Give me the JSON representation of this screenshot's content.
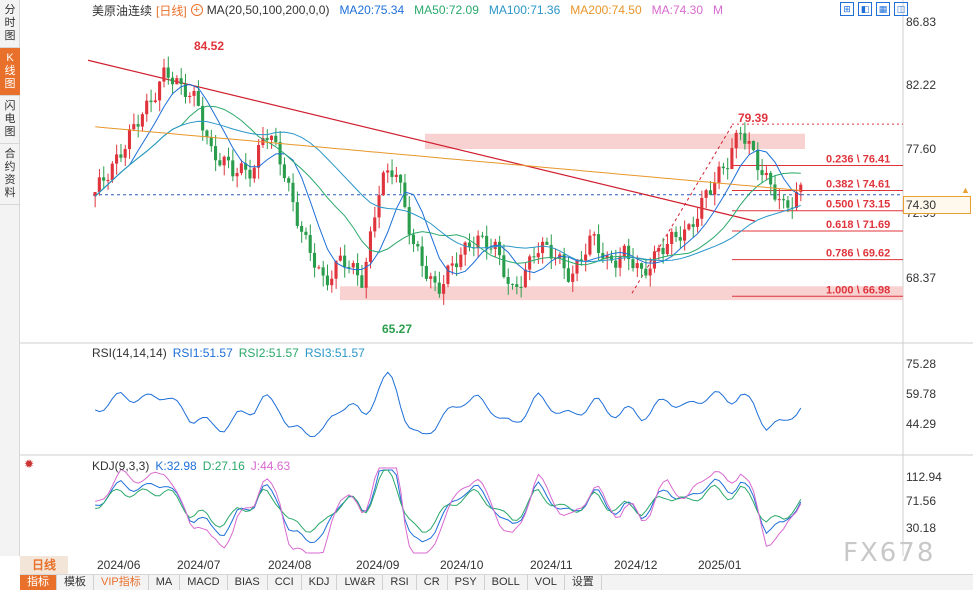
{
  "side_tabs": [
    "分时图",
    "K线图",
    "闪电图",
    "合约资料"
  ],
  "active_side_tab": 1,
  "header": {
    "instrument": "美原油连续",
    "period": "[日线]",
    "ma_label": "MA(20,50,100,200,0,0)",
    "ma20": "MA20:75.34",
    "ma50": "MA50:72.09",
    "ma100": "MA100:71.36",
    "ma200": "MA200:74.50",
    "ma_last": "MA:74.30",
    "m_mark": "M"
  },
  "tools": [
    "⊞",
    "◧",
    "▦",
    "◫"
  ],
  "main_axis": [
    "86.83",
    "82.22",
    "77.60",
    "72.99",
    "68.37"
  ],
  "last_price": "74.30",
  "annotations": {
    "high": "84.52",
    "low": "65.27",
    "recent_high": "79.39"
  },
  "fib_levels": [
    {
      "label": "0.236 \\ 76.41",
      "value": 76.41
    },
    {
      "label": "0.382 \\ 74.61",
      "value": 74.61
    },
    {
      "label": "0.500 \\ 73.15",
      "value": 73.15
    },
    {
      "label": "0.618 \\ 71.69",
      "value": 71.69
    },
    {
      "label": "0.786 \\ 69.62",
      "value": 69.62
    },
    {
      "label": "1.000 \\ 66.98",
      "value": 66.98
    }
  ],
  "rsi": {
    "label": "RSI(14,14,14)",
    "rsi1": "RSI1:51.57",
    "rsi2": "RSI2:51.57",
    "rsi3": "RSI3:51.57",
    "axis": [
      "75.28",
      "59.78",
      "44.29"
    ]
  },
  "kdj": {
    "label": "KDJ(9,3,3)",
    "k": "K:32.98",
    "d": "D:27.16",
    "j": "J:44.63",
    "axis": [
      "112.94",
      "71.56",
      "30.18"
    ]
  },
  "x_labels": [
    "2024/06",
    "2024/07",
    "2024/08",
    "2024/09",
    "2024/10",
    "2024/11",
    "2024/12",
    "2025/01"
  ],
  "period_tab": "日线",
  "bottom_tabs": [
    "指标",
    "模板",
    "VIP指标",
    "MA",
    "MACD",
    "BIAS",
    "CCI",
    "KDJ",
    "LW&R",
    "RSI",
    "CR",
    "PSY",
    "BOLL",
    "VOL",
    "设置"
  ],
  "watermark": "FX678",
  "colors": {
    "accent": "#e8702a",
    "up": "#e0343c",
    "down": "#2a9d4c",
    "ma20": "#1e6fd8",
    "ma50": "#2aa86a",
    "ma100": "#2a96c8",
    "ma200": "#e8962a",
    "ma": "#d86ad0"
  }
}
